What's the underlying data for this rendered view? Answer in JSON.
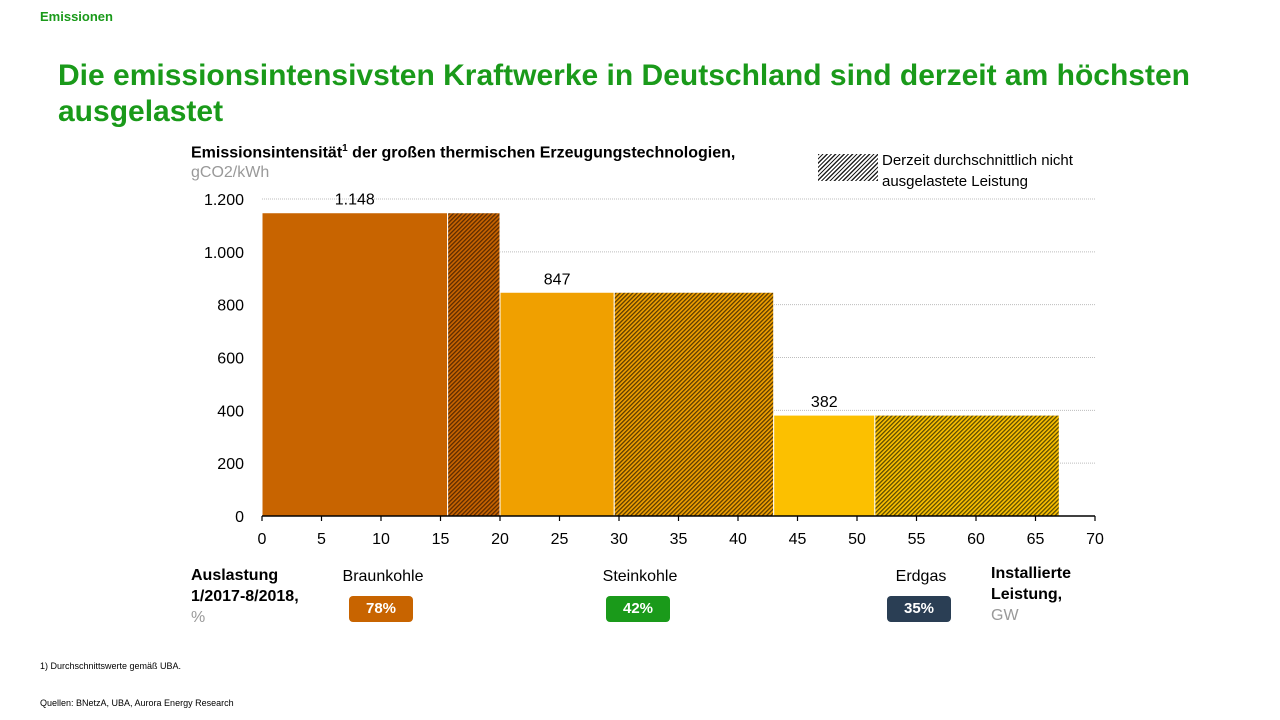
{
  "header": {
    "section": "Emissionen",
    "title": "Die emissionsintensivsten Kraftwerke in Deutschland sind derzeit am höchsten ausgelastet"
  },
  "chart_data": {
    "type": "bar",
    "title": "Emissionsintensität",
    "title_sup": "1",
    "title_rest": " der großen thermischen Erzeugungstechnologien,",
    "unit": "gCO2/kWh",
    "xlabel": "Installierte Leistung,",
    "xlabel_unit": "GW",
    "xlim": [
      0,
      70
    ],
    "ylim": [
      0,
      1200
    ],
    "x_ticks": [
      0,
      5,
      10,
      15,
      20,
      25,
      30,
      35,
      40,
      45,
      50,
      55,
      60,
      65,
      70
    ],
    "y_ticks": [
      0,
      200,
      400,
      600,
      800,
      1000,
      1200
    ],
    "y_tick_labels": [
      "0",
      "200",
      "400",
      "600",
      "800",
      "1.000",
      "1.200"
    ],
    "grid": true,
    "legend": {
      "label": "Derzeit durchschnittlich nicht ausgelastete Leistung",
      "placement": "top-right"
    },
    "series": [
      {
        "name": "Braunkohle",
        "x_start": 0,
        "x_used_end": 15.6,
        "x_end": 20.0,
        "value": 1148,
        "value_label": "1.148",
        "utilisation": "78%",
        "color": "#c86400",
        "hatch_dark": "#5a2a00"
      },
      {
        "name": "Steinkohle",
        "x_start": 20.0,
        "x_used_end": 29.6,
        "x_end": 43.0,
        "value": 847,
        "value_label": "847",
        "utilisation": "42%",
        "color": "#f0a000",
        "hatch_dark": "#5a3a00"
      },
      {
        "name": "Erdgas",
        "x_start": 43.0,
        "x_used_end": 51.5,
        "x_end": 67.0,
        "value": 382,
        "value_label": "382",
        "utilisation": "35%",
        "color": "#fcc000",
        "hatch_dark": "#5a4a00"
      }
    ]
  },
  "utilisation_row": {
    "label": "Auslastung 1/2017-8/2018,",
    "unit": "%",
    "badge_colors": [
      "#c86400",
      "#1a9a1a",
      "#2a3e54"
    ]
  },
  "footer": {
    "footnote": "1) Durchschnittswerte gemäß UBA.",
    "sources": "Quellen: BNetzA, UBA, Aurora Energy Research"
  }
}
